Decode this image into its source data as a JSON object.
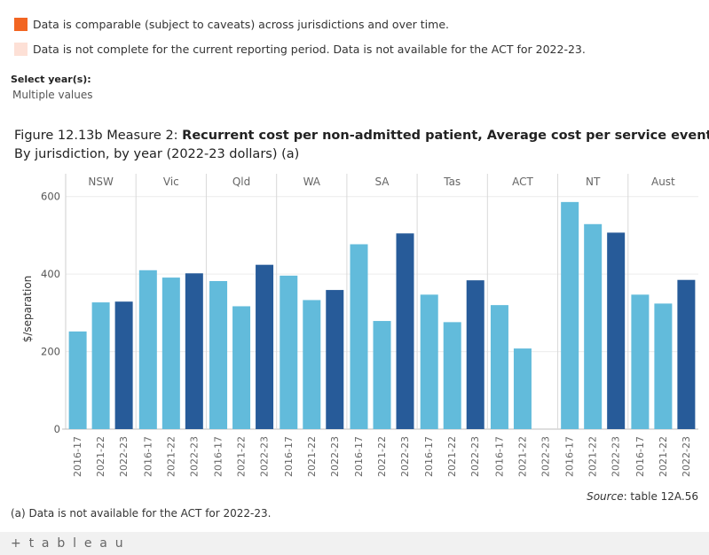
{
  "legend": [
    {
      "color": "#f26522",
      "label": "Data is comparable (subject to caveats) across jurisdictions and over time."
    },
    {
      "color": "#fde0d6",
      "label": "Data is not complete for the current reporting period. Data is not available for the ACT for 2022-23."
    }
  ],
  "filter": {
    "title": "Select year(s):",
    "value": "Multiple values"
  },
  "figure": {
    "title_prefix": "Figure 12.13b Measure 2: ",
    "title_bold": "Recurrent cost per non-admitted patient, Average cost per service event",
    "subtitle": "By jurisdiction, by year (2022-23 dollars) (a)"
  },
  "chart_data": {
    "type": "bar",
    "ylabel": "$/separation",
    "ylim": [
      0,
      620
    ],
    "yticks": [
      0,
      200,
      400,
      600
    ],
    "years": [
      "2016-17",
      "2021-22",
      "2022-23"
    ],
    "colors": {
      "2016-17": "#62bbdb",
      "2021-22": "#62bbdb",
      "2022-23": "#275b99"
    },
    "groups": [
      {
        "name": "NSW",
        "values": [
          252,
          327,
          329
        ]
      },
      {
        "name": "Vic",
        "values": [
          410,
          391,
          402
        ]
      },
      {
        "name": "Qld",
        "values": [
          382,
          317,
          424
        ]
      },
      {
        "name": "WA",
        "values": [
          396,
          333,
          359
        ]
      },
      {
        "name": "SA",
        "values": [
          477,
          279,
          505
        ]
      },
      {
        "name": "Tas",
        "values": [
          347,
          276,
          384
        ]
      },
      {
        "name": "ACT",
        "values": [
          320,
          208,
          null
        ]
      },
      {
        "name": "NT",
        "values": [
          586,
          529,
          507
        ]
      },
      {
        "name": "Aust",
        "values": [
          347,
          324,
          385
        ]
      }
    ]
  },
  "source": {
    "label": "Source",
    "text": ": table 12A.56"
  },
  "footnote": "(a) Data is not available for the ACT for 2022-23.",
  "footer": {
    "brand": "+ t a b l e a u"
  }
}
